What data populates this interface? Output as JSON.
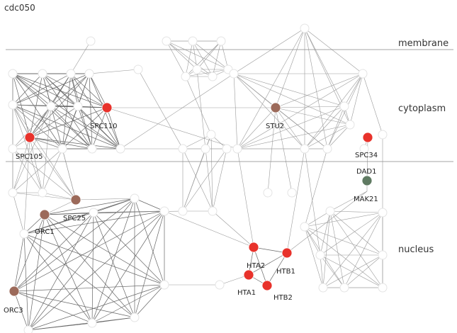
{
  "title": "cdc050",
  "compartments": [
    {
      "name": "membrane"
    },
    {
      "name": "cytoplasm"
    },
    {
      "name": "nucleus"
    }
  ],
  "node_colors": {
    "red": "#e8322b",
    "brown": "#9c6a5a",
    "green": "#5f7a62"
  },
  "nodes": [
    {
      "label": "SPC110",
      "color": "red"
    },
    {
      "label": "SPC105",
      "color": "red"
    },
    {
      "label": "SPC25",
      "color": "brown"
    },
    {
      "label": "STU2",
      "color": "brown"
    },
    {
      "label": "SPC34",
      "color": "red"
    },
    {
      "label": "DAD1",
      "color": "green"
    },
    {
      "label": "MAK21",
      "color": "none"
    },
    {
      "label": "ORC1",
      "color": "brown"
    },
    {
      "label": "ORC3",
      "color": "brown"
    },
    {
      "label": "HTA2",
      "color": "red"
    },
    {
      "label": "HTB1",
      "color": "red"
    },
    {
      "label": "HTA1",
      "color": "red"
    },
    {
      "label": "HTB2",
      "color": "red"
    }
  ]
}
